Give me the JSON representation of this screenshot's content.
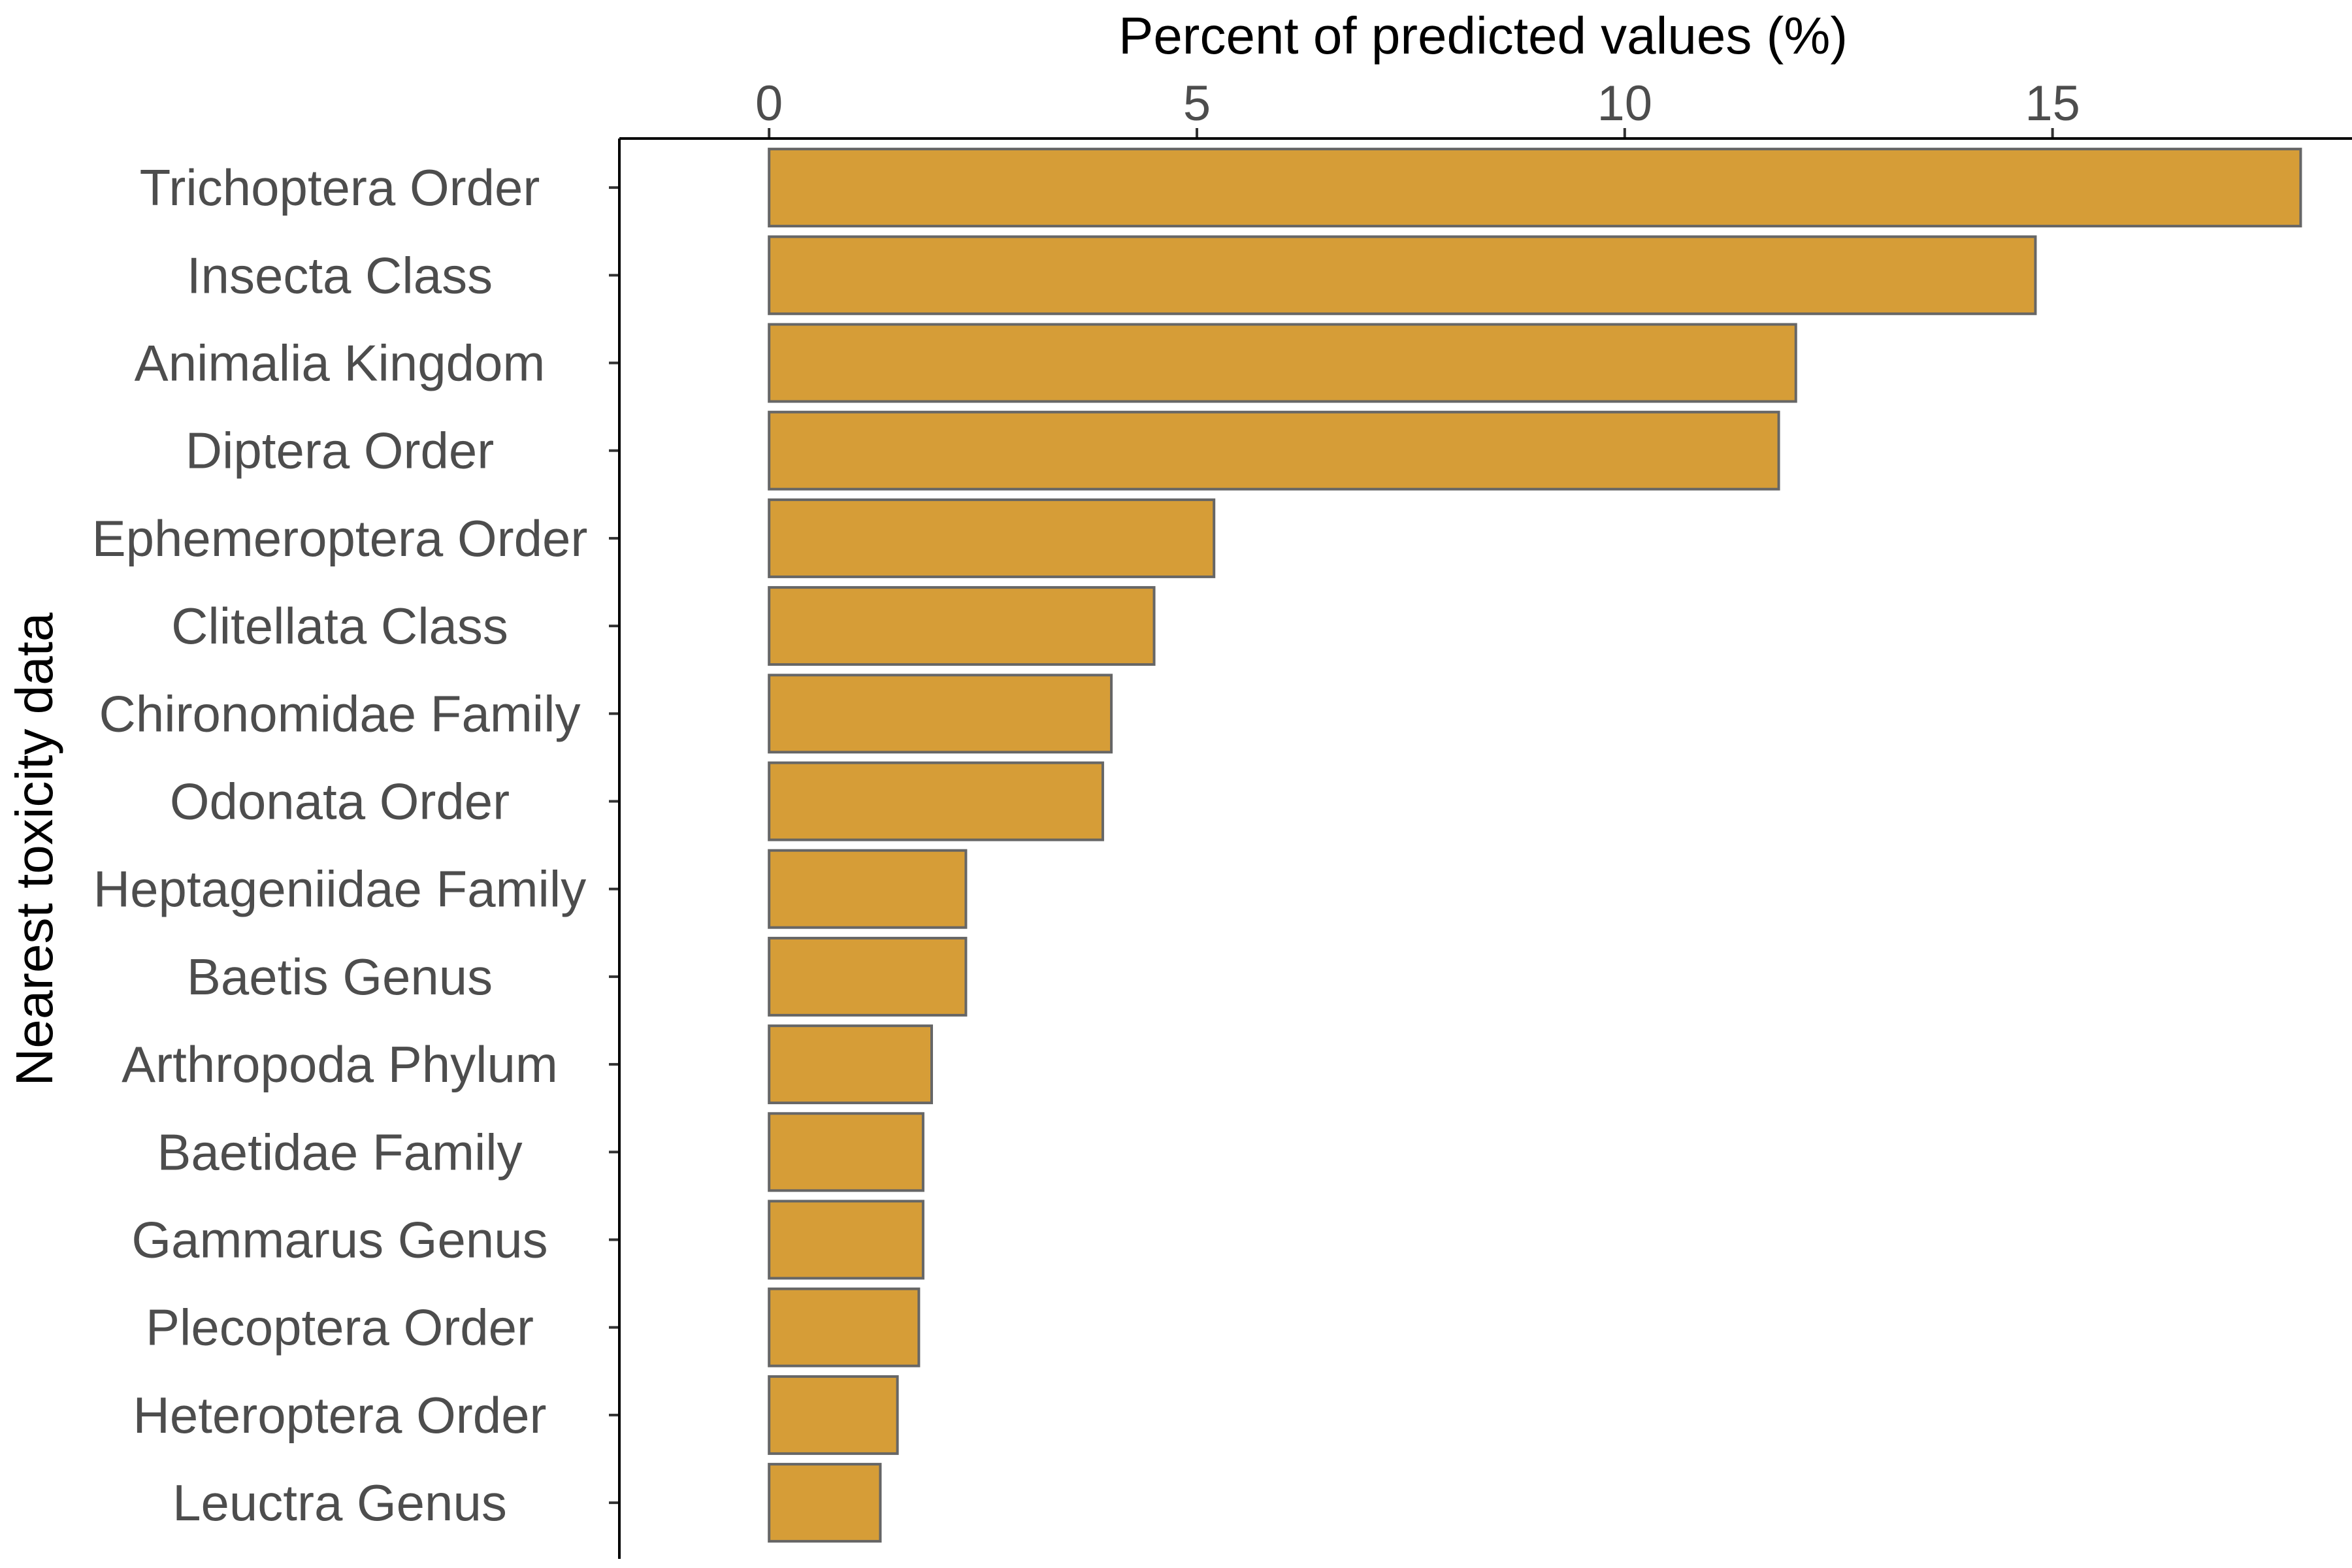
{
  "chart_data": {
    "type": "bar",
    "orientation": "horizontal",
    "title": "",
    "xlabel": "Percent of predicted values (%)",
    "ylabel": "Nearest toxicity data",
    "xlim": [
      -1.75,
      18.5
    ],
    "xticks": [
      0,
      5,
      10,
      15
    ],
    "x_axis_position": "top",
    "grid": false,
    "bar_color": "#d69d37",
    "bar_edge_color": "#666666",
    "categories": [
      "Trichoptera Order",
      "Insecta Class",
      "Animalia Kingdom",
      "Diptera Order",
      "Ephemeroptera Order",
      "Clitellata Class",
      "Chironomidae Family",
      "Odonata Order",
      "Heptageniidae Family",
      "Baetis Genus",
      "Arthropoda Phylum",
      "Baetidae Family",
      "Gammarus Genus",
      "Plecoptera Order",
      "Heteroptera Order",
      "Leuctra Genus"
    ],
    "values": [
      17.9,
      14.8,
      12.0,
      11.8,
      5.2,
      4.5,
      4.0,
      3.9,
      2.3,
      2.3,
      1.9,
      1.8,
      1.8,
      1.75,
      1.5,
      1.3
    ]
  }
}
